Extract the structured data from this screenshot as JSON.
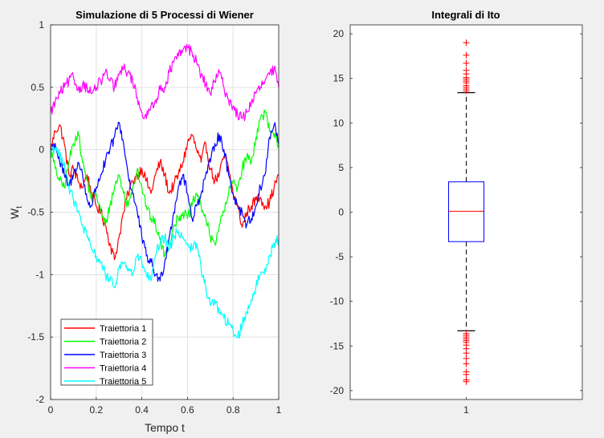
{
  "chart_data": [
    {
      "type": "line",
      "title": "Simulazione di 5 Processi di Wiener",
      "xlabel": "Tempo t",
      "ylabel": "W",
      "ylabel_subscript": "t",
      "xlim": [
        0,
        1
      ],
      "ylim": [
        -2,
        1
      ],
      "xticks": [
        "0",
        "0.2",
        "0.4",
        "0.6",
        "0.8",
        "1"
      ],
      "yticks": [
        "-2",
        "-1.5",
        "-1",
        "-0.5",
        "0",
        "0.5",
        "1"
      ],
      "grid": true,
      "legend_position": "bottom-left",
      "series": [
        {
          "name": "Traiettoria 1",
          "color": "#ff0000",
          "x": [
            0,
            0.02,
            0.04,
            0.06,
            0.08,
            0.1,
            0.12,
            0.14,
            0.16,
            0.18,
            0.2,
            0.22,
            0.24,
            0.26,
            0.28,
            0.3,
            0.32,
            0.34,
            0.36,
            0.38,
            0.4,
            0.42,
            0.44,
            0.46,
            0.48,
            0.5,
            0.52,
            0.54,
            0.56,
            0.58,
            0.6,
            0.62,
            0.64,
            0.66,
            0.68,
            0.7,
            0.72,
            0.74,
            0.76,
            0.78,
            0.8,
            0.82,
            0.84,
            0.86,
            0.88,
            0.9,
            0.92,
            0.94,
            0.96,
            0.98,
            1
          ],
          "y": [
            0,
            0.15,
            0.2,
            0.05,
            -0.2,
            -0.15,
            -0.25,
            -0.3,
            -0.2,
            -0.35,
            -0.45,
            -0.5,
            -0.6,
            -0.75,
            -0.88,
            -0.7,
            -0.5,
            -0.35,
            -0.25,
            -0.2,
            -0.15,
            -0.25,
            -0.35,
            -0.2,
            -0.1,
            -0.2,
            -0.35,
            -0.28,
            -0.2,
            -0.1,
            0.05,
            0.12,
            0.0,
            -0.1,
            0.05,
            -0.15,
            -0.25,
            -0.2,
            -0.05,
            -0.15,
            -0.35,
            -0.45,
            -0.62,
            -0.5,
            -0.45,
            -0.4,
            -0.38,
            -0.45,
            -0.42,
            -0.3,
            -0.2
          ]
        },
        {
          "name": "Traiettoria 2",
          "color": "#00ff00",
          "x": [
            0,
            0.02,
            0.04,
            0.06,
            0.08,
            0.1,
            0.12,
            0.14,
            0.16,
            0.18,
            0.2,
            0.22,
            0.24,
            0.26,
            0.28,
            0.3,
            0.32,
            0.34,
            0.36,
            0.38,
            0.4,
            0.42,
            0.44,
            0.46,
            0.48,
            0.5,
            0.52,
            0.54,
            0.56,
            0.58,
            0.6,
            0.62,
            0.64,
            0.66,
            0.68,
            0.7,
            0.72,
            0.74,
            0.76,
            0.78,
            0.8,
            0.82,
            0.84,
            0.86,
            0.88,
            0.9,
            0.92,
            0.94,
            0.96,
            0.98,
            1
          ],
          "y": [
            0,
            -0.15,
            -0.25,
            -0.3,
            -0.1,
            0.05,
            0.15,
            -0.1,
            -0.25,
            -0.4,
            -0.35,
            -0.5,
            -0.6,
            -0.45,
            -0.3,
            -0.2,
            -0.35,
            -0.45,
            -0.3,
            -0.15,
            -0.3,
            -0.45,
            -0.55,
            -0.6,
            -0.72,
            -0.85,
            -0.75,
            -0.6,
            -0.55,
            -0.5,
            -0.55,
            -0.45,
            -0.35,
            -0.45,
            -0.55,
            -0.7,
            -0.75,
            -0.6,
            -0.5,
            -0.35,
            -0.25,
            -0.3,
            -0.15,
            -0.05,
            -0.1,
            0.1,
            0.25,
            0.3,
            0.15,
            0.1,
            0.05
          ]
        },
        {
          "name": "Traiettoria 3",
          "color": "#0000ff",
          "x": [
            0,
            0.02,
            0.04,
            0.06,
            0.08,
            0.1,
            0.12,
            0.14,
            0.16,
            0.18,
            0.2,
            0.22,
            0.24,
            0.26,
            0.28,
            0.3,
            0.32,
            0.34,
            0.36,
            0.38,
            0.4,
            0.42,
            0.44,
            0.46,
            0.48,
            0.5,
            0.52,
            0.54,
            0.56,
            0.58,
            0.6,
            0.62,
            0.64,
            0.66,
            0.68,
            0.7,
            0.72,
            0.74,
            0.76,
            0.78,
            0.8,
            0.82,
            0.84,
            0.86,
            0.88,
            0.9,
            0.92,
            0.94,
            0.96,
            0.98,
            1
          ],
          "y": [
            0,
            0.05,
            -0.1,
            -0.2,
            -0.3,
            -0.2,
            -0.1,
            -0.2,
            -0.4,
            -0.45,
            -0.3,
            -0.2,
            -0.1,
            0.0,
            0.1,
            0.22,
            0.05,
            -0.2,
            -0.35,
            -0.5,
            -0.7,
            -0.85,
            -0.9,
            -1.0,
            -1.05,
            -0.9,
            -0.7,
            -0.5,
            -0.3,
            -0.2,
            -0.35,
            -0.55,
            -0.45,
            -0.35,
            -0.2,
            -0.1,
            0.05,
            0.12,
            0.0,
            -0.2,
            -0.35,
            -0.45,
            -0.5,
            -0.6,
            -0.55,
            -0.45,
            -0.3,
            -0.2,
            0.1,
            0.2,
            0.05
          ]
        },
        {
          "name": "Traiettoria 4",
          "color": "#ff00ff",
          "x": [
            0,
            0.02,
            0.04,
            0.06,
            0.08,
            0.1,
            0.12,
            0.14,
            0.16,
            0.18,
            0.2,
            0.22,
            0.24,
            0.26,
            0.28,
            0.3,
            0.32,
            0.34,
            0.36,
            0.38,
            0.4,
            0.42,
            0.44,
            0.46,
            0.48,
            0.5,
            0.52,
            0.54,
            0.56,
            0.58,
            0.6,
            0.62,
            0.64,
            0.66,
            0.68,
            0.7,
            0.72,
            0.74,
            0.76,
            0.78,
            0.8,
            0.82,
            0.84,
            0.86,
            0.88,
            0.9,
            0.92,
            0.94,
            0.96,
            0.98,
            1
          ],
          "y": [
            0.3,
            0.38,
            0.45,
            0.5,
            0.55,
            0.58,
            0.48,
            0.52,
            0.5,
            0.45,
            0.5,
            0.55,
            0.62,
            0.55,
            0.5,
            0.6,
            0.65,
            0.62,
            0.55,
            0.42,
            0.3,
            0.25,
            0.35,
            0.4,
            0.48,
            0.5,
            0.62,
            0.7,
            0.75,
            0.8,
            0.82,
            0.78,
            0.7,
            0.6,
            0.52,
            0.45,
            0.55,
            0.62,
            0.5,
            0.4,
            0.35,
            0.28,
            0.25,
            0.3,
            0.38,
            0.45,
            0.5,
            0.55,
            0.6,
            0.65,
            0.5
          ]
        },
        {
          "name": "Traiettoria 5",
          "color": "#00ffff",
          "x": [
            0,
            0.02,
            0.04,
            0.06,
            0.08,
            0.1,
            0.12,
            0.14,
            0.16,
            0.18,
            0.2,
            0.22,
            0.24,
            0.26,
            0.28,
            0.3,
            0.32,
            0.34,
            0.36,
            0.38,
            0.4,
            0.42,
            0.44,
            0.46,
            0.48,
            0.5,
            0.52,
            0.54,
            0.56,
            0.58,
            0.6,
            0.62,
            0.64,
            0.66,
            0.68,
            0.7,
            0.72,
            0.74,
            0.76,
            0.78,
            0.8,
            0.82,
            0.84,
            0.86,
            0.88,
            0.9,
            0.92,
            0.94,
            0.96,
            0.98,
            1
          ],
          "y": [
            0,
            0.02,
            -0.05,
            -0.1,
            -0.3,
            -0.4,
            -0.5,
            -0.6,
            -0.7,
            -0.8,
            -0.85,
            -0.9,
            -1.0,
            -1.05,
            -1.1,
            -0.95,
            -0.9,
            -0.95,
            -1.0,
            -0.85,
            -0.9,
            -1.0,
            -1.05,
            -0.85,
            -0.75,
            -0.7,
            -0.8,
            -0.7,
            -0.65,
            -0.7,
            -0.75,
            -0.8,
            -0.75,
            -0.95,
            -1.1,
            -1.25,
            -1.2,
            -1.3,
            -1.35,
            -1.4,
            -1.45,
            -1.5,
            -1.4,
            -1.3,
            -1.2,
            -1.1,
            -1.0,
            -0.95,
            -0.85,
            -0.75,
            -0.72
          ]
        }
      ]
    },
    {
      "type": "box",
      "title": "Integrali di Ito",
      "categories": [
        "1"
      ],
      "ylim": [
        -21,
        21
      ],
      "yticks": [
        "-20",
        "-15",
        "-10",
        "-5",
        "0",
        "5",
        "10",
        "15",
        "20"
      ],
      "grid": false,
      "box": {
        "median": 0.1,
        "q1": -3.3,
        "q3": 3.4,
        "whisker_low": -13.3,
        "whisker_high": 13.4,
        "box_color": "#0000ff",
        "median_color": "#ff0000",
        "whisker_color": "#000000",
        "outlier_color": "#ff0000",
        "outliers": [
          19.0,
          17.6,
          16.7,
          15.9,
          15.5,
          15.1,
          14.9,
          14.7,
          14.5,
          14.2,
          14.0,
          13.8,
          13.6,
          -13.6,
          -13.8,
          -14.0,
          -14.2,
          -14.4,
          -14.6,
          -14.9,
          -15.3,
          -15.8,
          -16.4,
          -17.0,
          -17.9,
          -18.2,
          -18.8,
          -19.0
        ]
      }
    }
  ]
}
